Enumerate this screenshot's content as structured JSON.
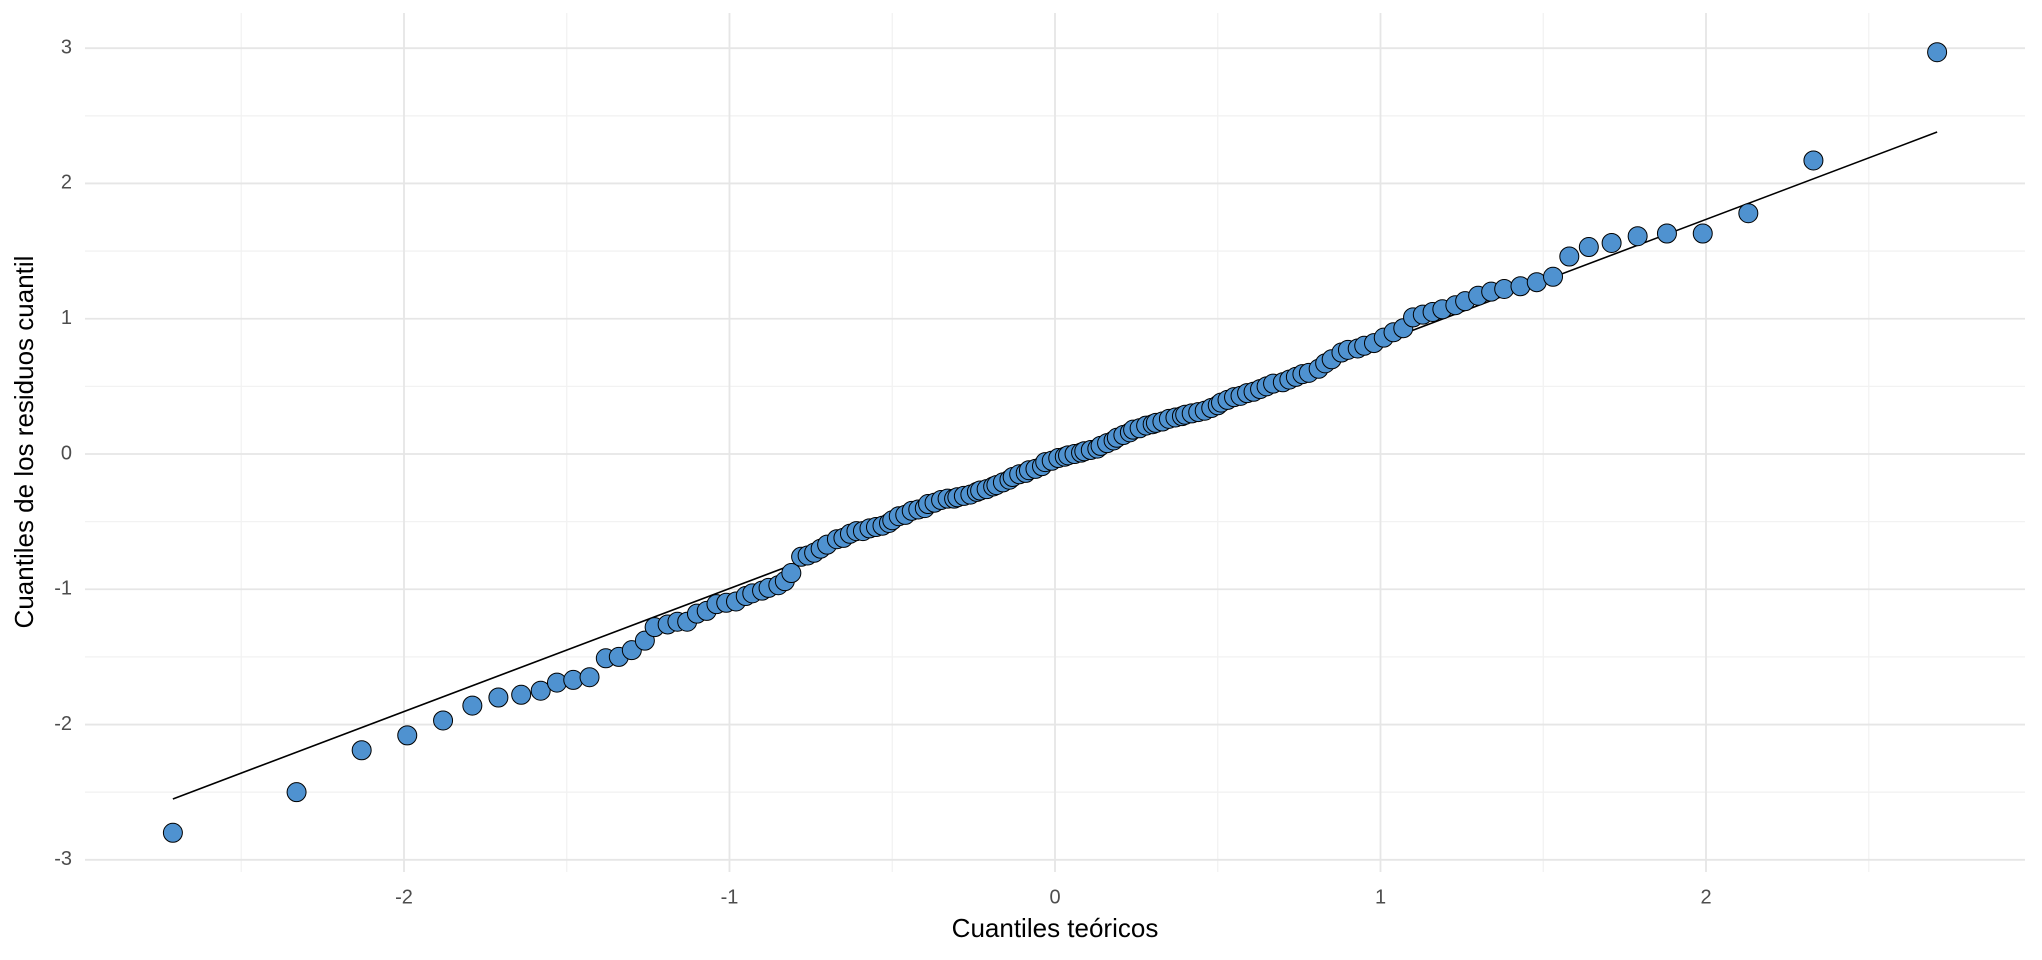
{
  "chart_data": {
    "type": "scatter",
    "x_label": "Cuantiles teóricos",
    "y_label": "Cuantiles de los residuos cuantil",
    "xlim": [
      -2.98,
      2.98
    ],
    "ylim": [
      -3.09,
      3.26
    ],
    "xticks": [
      -2,
      -1,
      0,
      1,
      2
    ],
    "yticks": [
      -3,
      -2,
      -1,
      0,
      1,
      2,
      3
    ],
    "minor_xticks": [
      -2.5,
      -1.5,
      -0.5,
      0.5,
      1.5,
      2.5
    ],
    "minor_yticks": [
      -2.5,
      -1.5,
      -0.5,
      0.5,
      1.5,
      2.5
    ],
    "grid": true,
    "series": [
      {
        "color": "#4f92d0",
        "edge_color": "#000000",
        "x": [
          -2.71,
          -2.33,
          -2.13,
          -1.99,
          -1.88,
          -1.79,
          -1.71,
          -1.64,
          -1.58,
          -1.53,
          -1.48,
          -1.43,
          -1.38,
          -1.34,
          -1.3,
          -1.26,
          -1.23,
          -1.19,
          -1.16,
          -1.13,
          -1.1,
          -1.07,
          -1.04,
          -1.01,
          -0.98,
          -0.95,
          -0.93,
          -0.9,
          -0.88,
          -0.85,
          -0.83,
          -0.81,
          -0.78,
          -0.76,
          -0.74,
          -0.72,
          -0.7,
          -0.67,
          -0.65,
          -0.63,
          -0.61,
          -0.59,
          -0.57,
          -0.55,
          -0.53,
          -0.51,
          -0.5,
          -0.48,
          -0.46,
          -0.44,
          -0.42,
          -0.4,
          -0.39,
          -0.37,
          -0.35,
          -0.33,
          -0.31,
          -0.3,
          -0.28,
          -0.26,
          -0.24,
          -0.23,
          -0.21,
          -0.19,
          -0.18,
          -0.16,
          -0.14,
          -0.13,
          -0.11,
          -0.09,
          -0.08,
          -0.06,
          -0.04,
          -0.03,
          -0.01,
          0.01,
          0.03,
          0.04,
          0.06,
          0.08,
          0.09,
          0.11,
          0.13,
          0.14,
          0.16,
          0.18,
          0.19,
          0.21,
          0.23,
          0.24,
          0.26,
          0.28,
          0.3,
          0.31,
          0.33,
          0.35,
          0.37,
          0.39,
          0.4,
          0.42,
          0.44,
          0.46,
          0.48,
          0.5,
          0.51,
          0.53,
          0.55,
          0.57,
          0.59,
          0.61,
          0.63,
          0.65,
          0.67,
          0.7,
          0.72,
          0.74,
          0.76,
          0.78,
          0.81,
          0.83,
          0.85,
          0.88,
          0.9,
          0.93,
          0.95,
          0.98,
          1.01,
          1.04,
          1.07,
          1.1,
          1.13,
          1.16,
          1.19,
          1.23,
          1.26,
          1.3,
          1.34,
          1.38,
          1.43,
          1.48,
          1.53,
          1.58,
          1.64,
          1.71,
          1.79,
          1.88,
          1.99,
          2.13,
          2.33,
          2.71
        ],
        "y": [
          -2.8,
          -2.5,
          -2.19,
          -2.08,
          -1.97,
          -1.86,
          -1.8,
          -1.78,
          -1.75,
          -1.69,
          -1.67,
          -1.65,
          -1.51,
          -1.5,
          -1.45,
          -1.38,
          -1.28,
          -1.26,
          -1.24,
          -1.24,
          -1.18,
          -1.16,
          -1.11,
          -1.1,
          -1.09,
          -1.05,
          -1.03,
          -1.01,
          -0.99,
          -0.97,
          -0.94,
          -0.88,
          -0.76,
          -0.75,
          -0.73,
          -0.7,
          -0.67,
          -0.63,
          -0.62,
          -0.59,
          -0.57,
          -0.57,
          -0.55,
          -0.54,
          -0.53,
          -0.51,
          -0.49,
          -0.46,
          -0.45,
          -0.42,
          -0.41,
          -0.4,
          -0.37,
          -0.36,
          -0.34,
          -0.33,
          -0.33,
          -0.32,
          -0.31,
          -0.3,
          -0.28,
          -0.27,
          -0.26,
          -0.24,
          -0.23,
          -0.21,
          -0.19,
          -0.17,
          -0.15,
          -0.14,
          -0.12,
          -0.11,
          -0.09,
          -0.06,
          -0.05,
          -0.03,
          -0.02,
          -0.01,
          0,
          0.01,
          0.02,
          0.03,
          0.04,
          0.06,
          0.08,
          0.1,
          0.12,
          0.14,
          0.16,
          0.18,
          0.19,
          0.21,
          0.22,
          0.23,
          0.24,
          0.26,
          0.27,
          0.28,
          0.29,
          0.3,
          0.31,
          0.32,
          0.34,
          0.36,
          0.38,
          0.4,
          0.42,
          0.43,
          0.45,
          0.46,
          0.48,
          0.5,
          0.52,
          0.53,
          0.55,
          0.57,
          0.59,
          0.6,
          0.63,
          0.67,
          0.7,
          0.75,
          0.77,
          0.78,
          0.8,
          0.82,
          0.86,
          0.9,
          0.93,
          1.01,
          1.03,
          1.05,
          1.07,
          1.1,
          1.13,
          1.17,
          1.2,
          1.22,
          1.24,
          1.27,
          1.31,
          1.46,
          1.53,
          1.56,
          1.61,
          1.63,
          1.63,
          1.78,
          2.17,
          2.97
        ]
      }
    ],
    "reference_line": {
      "x": [
        -2.71,
        2.71
      ],
      "y": [
        -2.55,
        2.38
      ],
      "color": "#000000"
    }
  }
}
